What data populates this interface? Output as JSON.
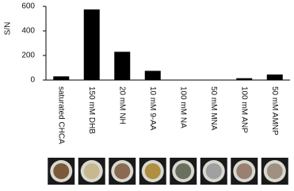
{
  "chart_data": {
    "type": "bar",
    "y_label": "S/N",
    "categories": [
      "saturated CHCA",
      "150 mM DHB",
      "20 mM NH",
      "10 mM 9-AA",
      "100 mM NA",
      "50 mM MNA",
      "100 mM ANP",
      "50 mM AMNP"
    ],
    "values": [
      30,
      575,
      230,
      75,
      0,
      0,
      15,
      45
    ],
    "color": "#000000",
    "ylim": [
      0,
      600
    ],
    "yticks": [
      0,
      200,
      400,
      600
    ],
    "grid": false
  }
}
